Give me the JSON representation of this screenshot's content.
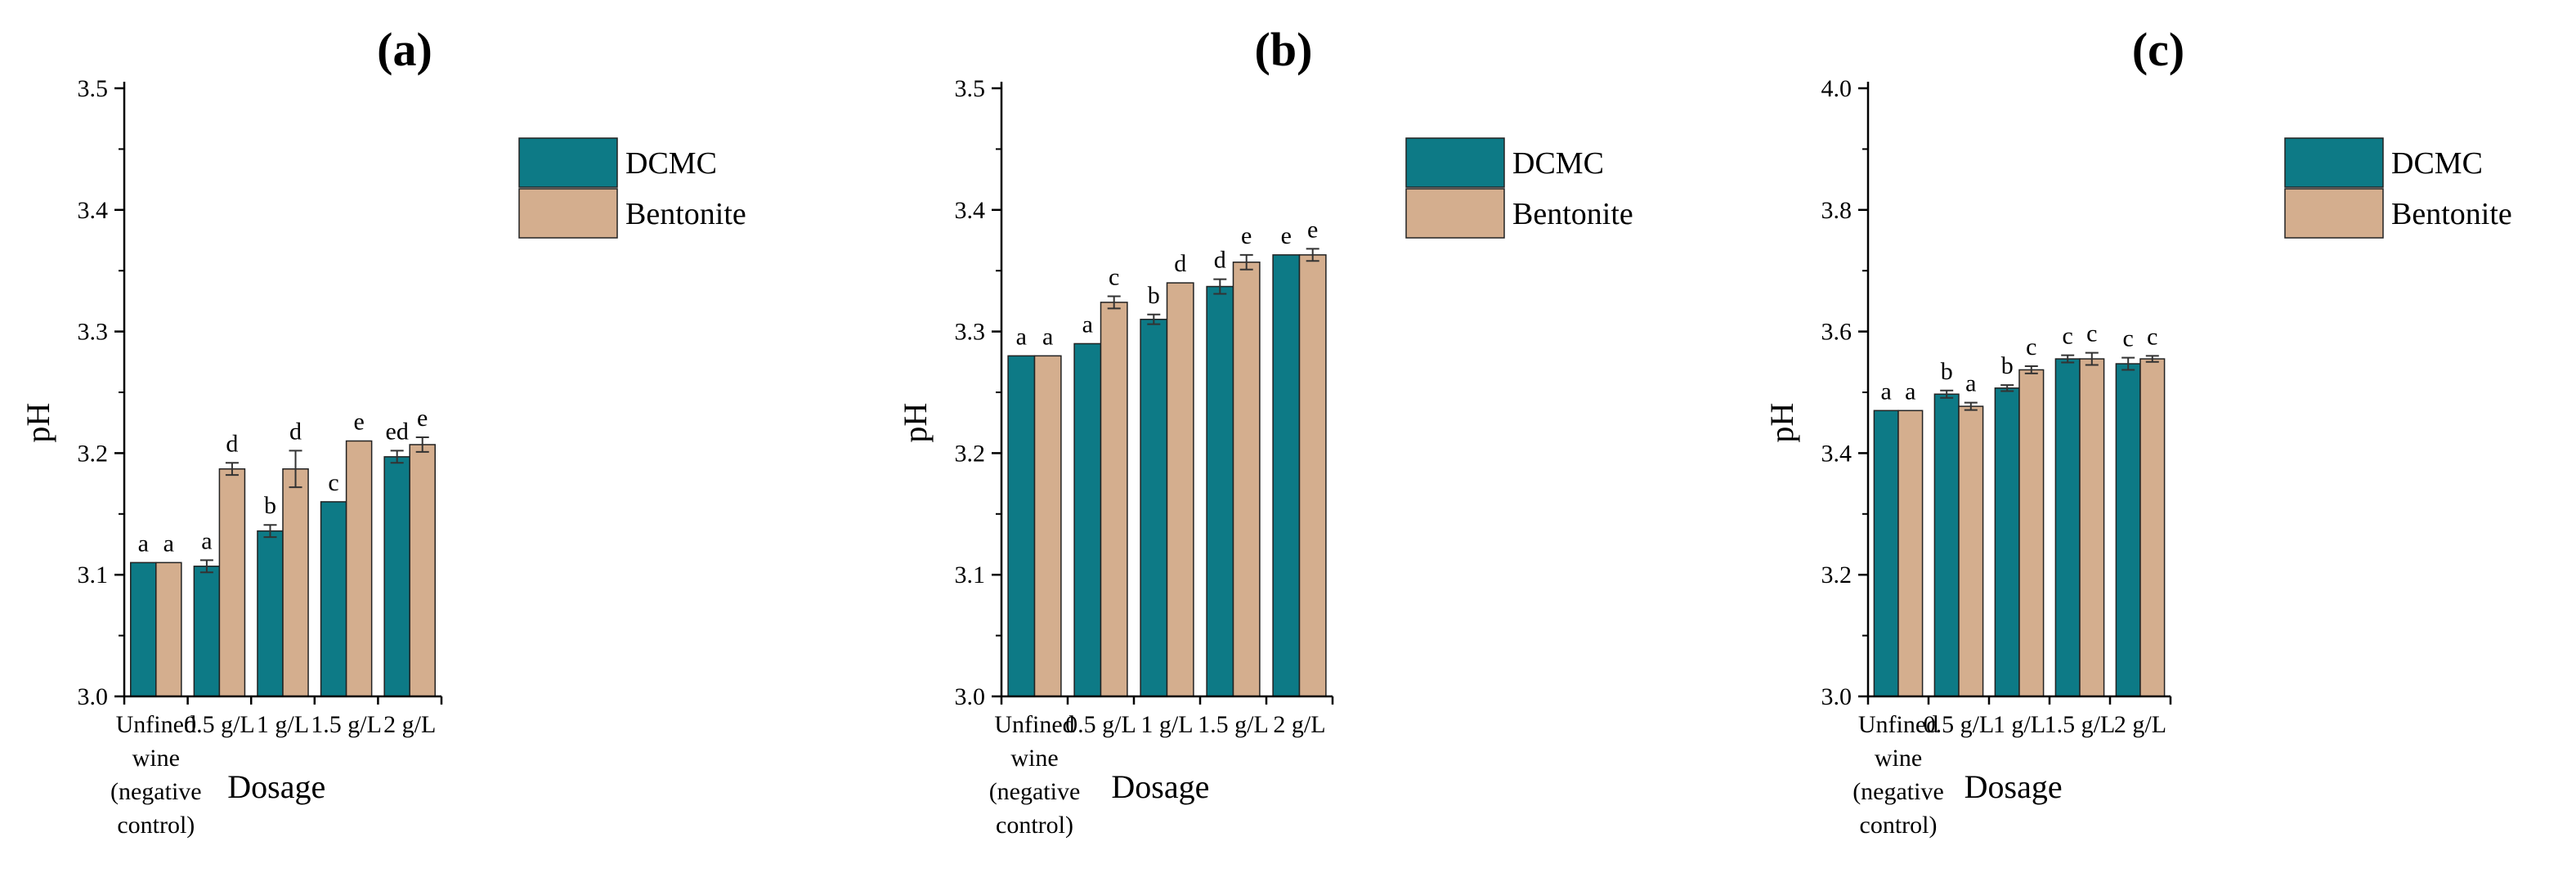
{
  "colors": {
    "dcmc": "#0d7a86",
    "bentonite": "#d4ae8e",
    "axis": "#000000",
    "bar_stroke": "#222222",
    "error_bar": "#333333"
  },
  "chart_data": [
    {
      "type": "bar",
      "panel_label": "(a)",
      "title": "(a)",
      "xlabel": "Dosage",
      "ylabel": "pH",
      "ylim": [
        3.0,
        3.5
      ],
      "yticks": [
        3.0,
        3.1,
        3.2,
        3.3,
        3.4,
        3.5
      ],
      "ytick_labels": [
        "3.0",
        "3.1",
        "3.2",
        "3.3",
        "3.4",
        "3.5"
      ],
      "categories": [
        "Unfined wine (negative control)",
        "0.5 g/L",
        "1 g/L",
        "1.5 g/L",
        "2 g/L"
      ],
      "category_lines": [
        [
          "Unfined",
          "wine",
          "(negative",
          "control)"
        ],
        [
          "0.5 g/L"
        ],
        [
          "1 g/L"
        ],
        [
          "1.5 g/L"
        ],
        [
          "2 g/L"
        ]
      ],
      "legend": [
        "DCMC",
        "Bentonite"
      ],
      "series": [
        {
          "name": "DCMC",
          "values": [
            3.11,
            3.107,
            3.136,
            3.16,
            3.197
          ],
          "errors": [
            0,
            0.005,
            0.005,
            0,
            0.005
          ],
          "labels": [
            "a",
            "a",
            "b",
            "c",
            "ed"
          ]
        },
        {
          "name": "Bentonite",
          "values": [
            3.11,
            3.187,
            3.187,
            3.21,
            3.207
          ],
          "errors": [
            0,
            0.005,
            0.015,
            0,
            0.006
          ],
          "labels": [
            "a",
            "d",
            "d",
            "e",
            "e"
          ]
        }
      ]
    },
    {
      "type": "bar",
      "panel_label": "(b)",
      "title": "(b)",
      "xlabel": "Dosage",
      "ylabel": "pH",
      "ylim": [
        3.0,
        3.5
      ],
      "yticks": [
        3.0,
        3.1,
        3.2,
        3.3,
        3.4,
        3.5
      ],
      "ytick_labels": [
        "3.0",
        "3.1",
        "3.2",
        "3.3",
        "3.4",
        "3.5"
      ],
      "categories": [
        "Unfined wine (negative control)",
        "0.5 g/L",
        "1 g/L",
        "1.5 g/L",
        "2 g/L"
      ],
      "category_lines": [
        [
          "Unfined",
          "wine",
          "(negative",
          "control)"
        ],
        [
          "0.5 g/L"
        ],
        [
          "1 g/L"
        ],
        [
          "1.5 g/L"
        ],
        [
          "2 g/L"
        ]
      ],
      "legend": [
        "DCMC",
        "Bentonite"
      ],
      "series": [
        {
          "name": "DCMC",
          "values": [
            3.28,
            3.29,
            3.31,
            3.337,
            3.363
          ],
          "errors": [
            0,
            0,
            0.004,
            0.006,
            0
          ],
          "labels": [
            "a",
            "a",
            "b",
            "d",
            "e"
          ]
        },
        {
          "name": "Bentonite",
          "values": [
            3.28,
            3.324,
            3.34,
            3.357,
            3.363
          ],
          "errors": [
            0,
            0.005,
            0,
            0.006,
            0.005
          ],
          "labels": [
            "a",
            "c",
            "d",
            "e",
            "e"
          ]
        }
      ]
    },
    {
      "type": "bar",
      "panel_label": "(c)",
      "title": "(c)",
      "xlabel": "Dosage",
      "ylabel": "pH",
      "ylim": [
        3.0,
        4.0
      ],
      "yticks": [
        3.0,
        3.2,
        3.4,
        3.6,
        3.8,
        4.0
      ],
      "ytick_labels": [
        "3.0",
        "3.2",
        "3.4",
        "3.6",
        "3.8",
        "4.0"
      ],
      "categories": [
        "Unfined wine (negative control)",
        "0.5 g/L",
        "1 g/L",
        "1.5 g/L",
        "2 g/L"
      ],
      "category_lines": [
        [
          "Unfined",
          "wine",
          "(negative",
          "control)"
        ],
        [
          "0.5 g/L"
        ],
        [
          "1 g/L"
        ],
        [
          "1.5 g/L"
        ],
        [
          "2 g/L"
        ]
      ],
      "legend": [
        "DCMC",
        "Bentonite"
      ],
      "series": [
        {
          "name": "DCMC",
          "values": [
            3.47,
            3.497,
            3.507,
            3.555,
            3.547
          ],
          "errors": [
            0,
            0.006,
            0.005,
            0.006,
            0.01
          ],
          "labels": [
            "a",
            "b",
            "b",
            "c",
            "c"
          ]
        },
        {
          "name": "Bentonite",
          "values": [
            3.47,
            3.477,
            3.537,
            3.555,
            3.555
          ],
          "errors": [
            0,
            0.006,
            0.006,
            0.01,
            0.005
          ],
          "labels": [
            "a",
            "a",
            "c",
            "c",
            "c"
          ]
        }
      ]
    }
  ]
}
